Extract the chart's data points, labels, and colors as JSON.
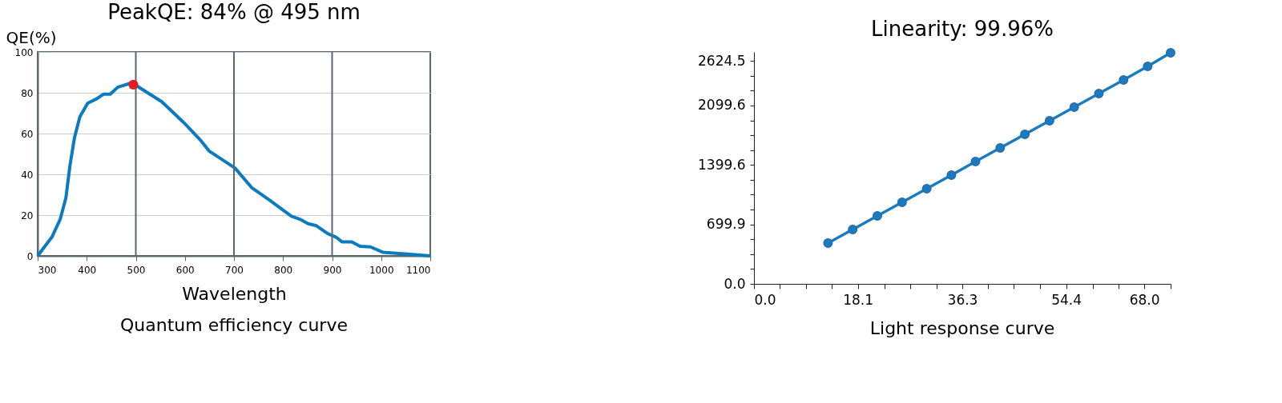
{
  "chart_data": [
    {
      "type": "line",
      "title": "PeakQE: 84% @ 495 nm",
      "xlabel": "Wavelength",
      "ylabel": "QE(%)",
      "xlim": [
        300,
        1100
      ],
      "xticks": [
        300,
        400,
        500,
        600,
        700,
        800,
        900,
        1000,
        1100
      ],
      "ylim": [
        0,
        100
      ],
      "yticks": [
        0,
        20,
        40,
        60,
        80,
        100
      ],
      "grid": "y",
      "ref_lines": [
        {
          "axis": "x",
          "value": 500,
          "color": "#5a6670"
        },
        {
          "axis": "x",
          "value": 700,
          "color": "#5a6670"
        },
        {
          "axis": "x",
          "value": 900,
          "color": "#5a6670"
        }
      ],
      "annotations": [
        "Quantum efficiency curve"
      ],
      "series": [
        {
          "type": "line",
          "color": "#0a7bbf",
          "marker": "none",
          "line_style": "solid",
          "x": [
            300,
            329,
            346,
            357.5,
            366,
            375,
            386,
            402,
            420,
            434,
            448,
            463,
            492,
            553,
            598,
            633,
            650,
            702,
            736,
            771,
            817,
            834,
            851,
            868,
            891,
            908,
            920,
            940,
            957,
            978,
            1003,
            1047,
            1100
          ],
          "values": [
            0,
            9.2,
            18,
            28.4,
            44.6,
            57.9,
            68.2,
            74.9,
            77,
            79.3,
            79.3,
            82.7,
            84.9,
            75.6,
            65.3,
            56.4,
            51.3,
            43.1,
            33.5,
            27.6,
            19.5,
            18,
            15.8,
            14.8,
            10.9,
            9.2,
            6.9,
            6.9,
            4.7,
            4.4,
            1.8,
            1,
            0
          ]
        },
        {
          "type": "scatter",
          "color": "#e02020",
          "marker": "circle",
          "x": [
            495
          ],
          "values": [
            84
          ]
        }
      ]
    },
    {
      "type": "line",
      "title": "Linearity: 99.96%",
      "marker": "circle",
      "grid": false,
      "xlim": [
        0,
        72.6
      ],
      "xticks": [
        {
          "value": 0,
          "label": "0.0"
        },
        {
          "value": 4.5,
          "label": null
        },
        {
          "value": 9.1,
          "label": null
        },
        {
          "value": 13.6,
          "label": null
        },
        {
          "value": 18.1,
          "label": "18.1"
        },
        {
          "value": 22.7,
          "label": null
        },
        {
          "value": 27.2,
          "label": null
        },
        {
          "value": 31.8,
          "label": null
        },
        {
          "value": 36.3,
          "label": "36.3"
        },
        {
          "value": 40.8,
          "label": null
        },
        {
          "value": 45.3,
          "label": null
        },
        {
          "value": 49.9,
          "label": null
        },
        {
          "value": 54.4,
          "label": "54.4"
        },
        {
          "value": 59.0,
          "label": null
        },
        {
          "value": 63.5,
          "label": null
        },
        {
          "value": 68.0,
          "label": "68.0"
        },
        {
          "value": 72.6,
          "label": null
        }
      ],
      "ylim": [
        0,
        2730
      ],
      "yticks": [
        {
          "value": 0,
          "label": "0.0"
        },
        {
          "value": 175,
          "label": null
        },
        {
          "value": 350,
          "label": null
        },
        {
          "value": 525,
          "label": null
        },
        {
          "value": 699.9,
          "label": "699.9"
        },
        {
          "value": 875,
          "label": null
        },
        {
          "value": 1050,
          "label": null
        },
        {
          "value": 1225,
          "label": null
        },
        {
          "value": 1399.6,
          "label": "1399.6"
        },
        {
          "value": 1575,
          "label": null
        },
        {
          "value": 1750,
          "label": null
        },
        {
          "value": 1925,
          "label": null
        },
        {
          "value": 2099.6,
          "label": "2099.6"
        },
        {
          "value": 2275,
          "label": null
        },
        {
          "value": 2450,
          "label": null
        },
        {
          "value": 2624.5,
          "label": "2624.5"
        }
      ],
      "annotations": [
        "Light response curve"
      ],
      "series": [
        {
          "color": "#1a7cc0",
          "line_style": "solid",
          "x": [
            12.9,
            17.2,
            21.5,
            25.8,
            30.1,
            34.4,
            38.6,
            42.9,
            47.2,
            51.5,
            55.8,
            60.1,
            64.4,
            68.6,
            72.6
          ],
          "values": [
            480,
            640,
            800,
            960,
            1120,
            1280,
            1440,
            1600,
            1760,
            1920,
            2080,
            2240,
            2400,
            2560,
            2720
          ]
        }
      ]
    }
  ]
}
